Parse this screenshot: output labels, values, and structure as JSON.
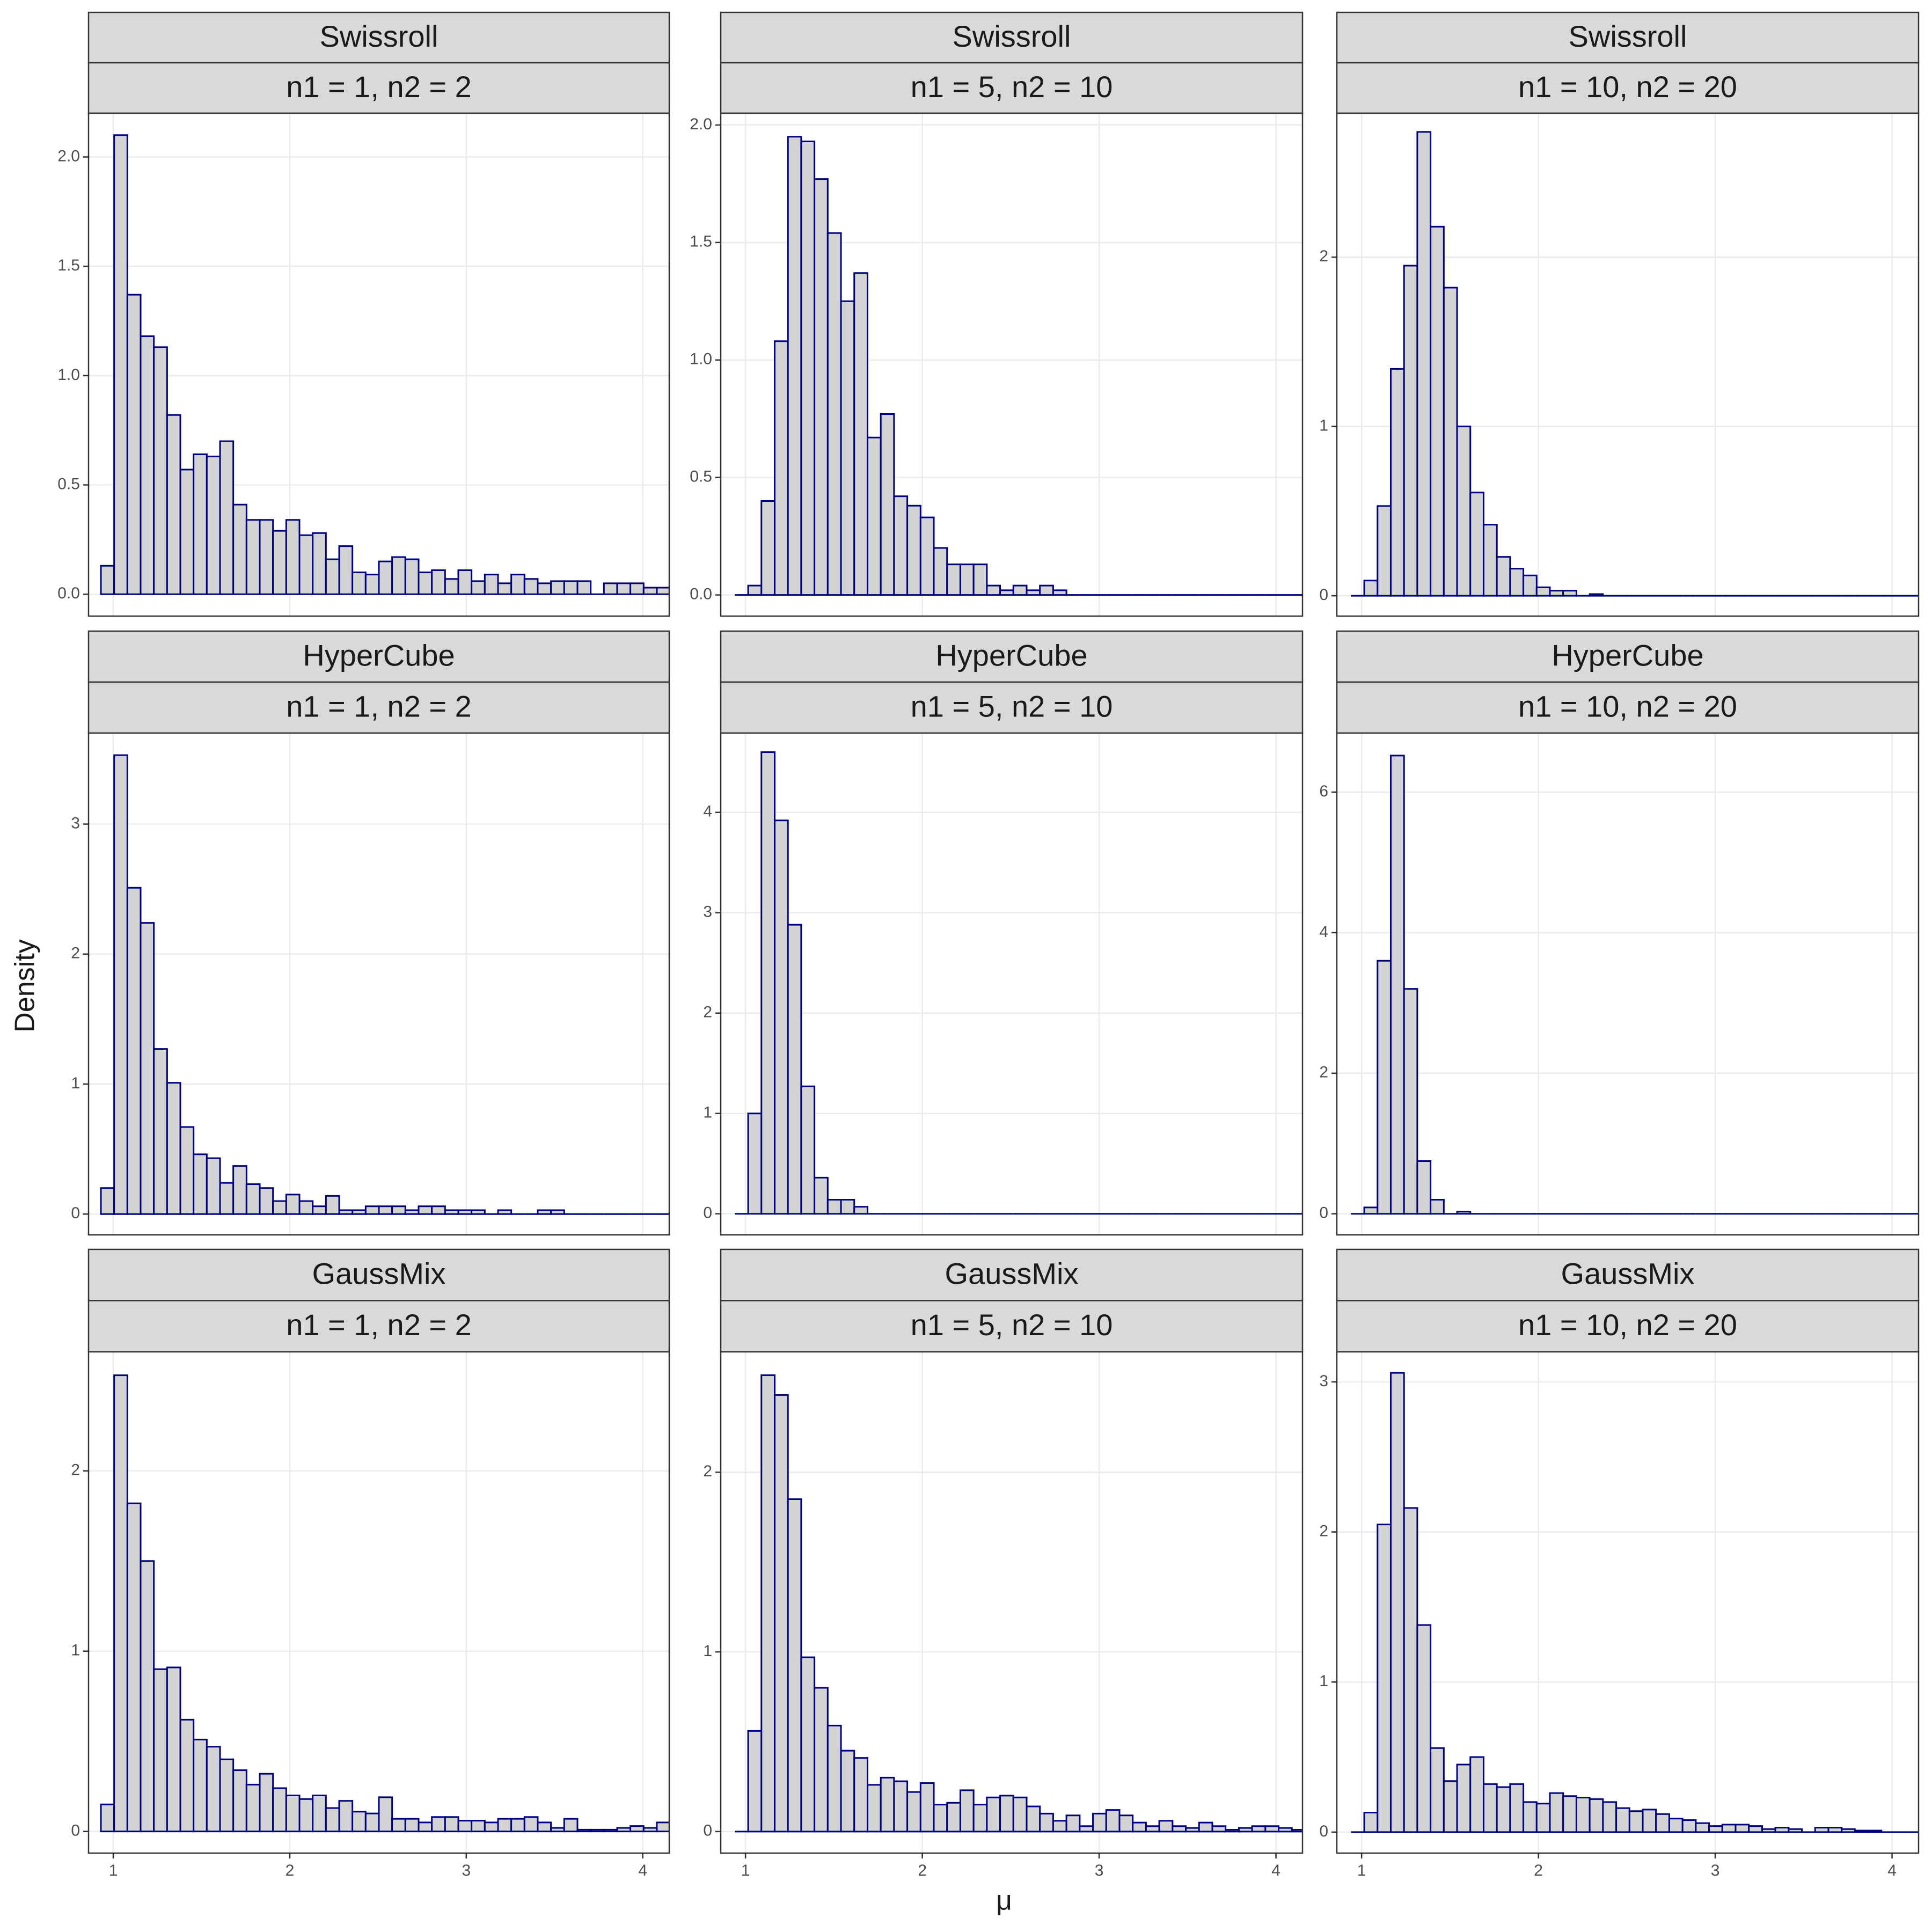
{
  "chart_data": [
    {
      "type": "histogram",
      "title": "Swissroll",
      "subtitle": "n1 = 1, n2 = 2",
      "color": "#000080",
      "fill": "#d3d3d3",
      "bins": [
        0.93,
        1.005,
        1.08,
        1.155,
        1.23,
        1.305,
        1.38,
        1.455,
        1.53,
        1.605,
        1.68,
        1.755,
        1.83,
        1.905,
        1.98,
        2.055,
        2.13,
        2.205,
        2.28,
        2.355,
        2.43,
        2.505,
        2.58,
        2.655,
        2.73,
        2.805,
        2.88,
        2.955,
        3.03,
        3.105,
        3.18,
        3.255,
        3.33,
        3.405,
        3.48,
        3.555,
        3.63,
        3.705,
        3.78,
        3.855,
        3.93,
        4.005,
        4.08,
        4.155
      ],
      "values": [
        0.13,
        2.1,
        1.37,
        1.18,
        1.13,
        0.82,
        0.57,
        0.64,
        0.63,
        0.7,
        0.41,
        0.34,
        0.34,
        0.29,
        0.34,
        0.27,
        0.28,
        0.16,
        0.22,
        0.1,
        0.09,
        0.15,
        0.17,
        0.16,
        0.1,
        0.11,
        0.07,
        0.11,
        0.06,
        0.09,
        0.05,
        0.09,
        0.07,
        0.05,
        0.06,
        0.06,
        0.06,
        0,
        0.05,
        0.05,
        0.05,
        0.03,
        0.03
      ],
      "xlim": [
        0.86,
        4.15
      ],
      "xticks": [
        1,
        2,
        3,
        4
      ],
      "ylim": [
        -0.1,
        2.2
      ],
      "yticks": [
        {
          "value": 0,
          "label": "0.0"
        },
        0.5,
        {
          "value": 1,
          "label": "1.0"
        },
        1.5,
        {
          "value": 2,
          "label": "2.0"
        }
      ]
    },
    {
      "type": "histogram",
      "title": "Swissroll",
      "subtitle": "n1 = 5, n2 = 10",
      "color": "#000080",
      "fill": "#d3d3d3",
      "bins": [
        0.94,
        1.015,
        1.09,
        1.165,
        1.24,
        1.315,
        1.39,
        1.465,
        1.54,
        1.615,
        1.69,
        1.765,
        1.84,
        1.915,
        1.99,
        2.065,
        2.14,
        2.215,
        2.29,
        2.365,
        2.44,
        2.515,
        2.59,
        2.665,
        2.74,
        2.815,
        2.89,
        2.965,
        3.04,
        3.115,
        3.19,
        3.265,
        3.34,
        3.415,
        3.49,
        3.565,
        3.64,
        3.715,
        3.79,
        3.865,
        3.94,
        4.015,
        4.09,
        4.165
      ],
      "values": [
        0,
        0.04,
        0.4,
        1.08,
        1.95,
        1.93,
        1.77,
        1.54,
        1.25,
        1.37,
        0.67,
        0.77,
        0.42,
        0.38,
        0.33,
        0.2,
        0.13,
        0.13,
        0.13,
        0.04,
        0.02,
        0.04,
        0.02,
        0.04,
        0.02,
        0,
        0,
        0,
        0,
        0,
        0,
        0,
        0,
        0,
        0,
        0,
        0,
        0,
        0,
        0,
        0,
        0,
        0
      ],
      "xlim": [
        0.86,
        4.15
      ],
      "xticks": [
        1,
        2,
        3,
        4
      ],
      "ylim": [
        -0.09,
        2.05
      ],
      "yticks": [
        {
          "value": 0,
          "label": "0.0"
        },
        0.5,
        {
          "value": 1,
          "label": "1.0"
        },
        1.5,
        {
          "value": 2,
          "label": "2.0"
        }
      ]
    },
    {
      "type": "histogram",
      "title": "Swissroll",
      "subtitle": "n1 = 10, n2 = 20",
      "color": "#000080",
      "fill": "#d3d3d3",
      "bins": [
        0.94,
        1.015,
        1.09,
        1.165,
        1.24,
        1.315,
        1.39,
        1.465,
        1.54,
        1.615,
        1.69,
        1.765,
        1.84,
        1.915,
        1.99,
        2.065,
        2.14,
        2.215,
        2.29,
        2.365,
        2.44,
        2.515,
        2.59,
        2.665,
        2.74,
        2.815,
        2.89,
        2.965,
        3.04,
        3.115,
        3.19,
        3.265,
        3.34,
        3.415,
        3.49,
        3.565,
        3.64,
        3.715,
        3.79,
        3.865,
        3.94,
        4.015,
        4.09,
        4.165
      ],
      "values": [
        0,
        0.09,
        0.53,
        1.34,
        1.95,
        2.74,
        2.18,
        1.82,
        1.0,
        0.61,
        0.42,
        0.23,
        0.16,
        0.12,
        0.05,
        0.03,
        0.03,
        0,
        0.01,
        0,
        0,
        0,
        0,
        0,
        0,
        0,
        0,
        0,
        0,
        0,
        0,
        0,
        0,
        0,
        0,
        0,
        0,
        0,
        0,
        0,
        0,
        0,
        0
      ],
      "xlim": [
        0.86,
        4.15
      ],
      "xticks": [
        1,
        2,
        3,
        4
      ],
      "ylim": [
        -0.12,
        2.85
      ],
      "yticks": [
        0,
        1,
        2
      ]
    },
    {
      "type": "histogram",
      "title": "HyperCube",
      "subtitle": "n1 = 1, n2 = 2",
      "color": "#000080",
      "fill": "#d3d3d3",
      "ylabel": "Density",
      "bins": [
        0.93,
        1.005,
        1.08,
        1.155,
        1.23,
        1.305,
        1.38,
        1.455,
        1.53,
        1.605,
        1.68,
        1.755,
        1.83,
        1.905,
        1.98,
        2.055,
        2.13,
        2.205,
        2.28,
        2.355,
        2.43,
        2.505,
        2.58,
        2.655,
        2.73,
        2.805,
        2.88,
        2.955,
        3.03,
        3.105,
        3.18,
        3.255,
        3.33,
        3.405,
        3.48,
        3.555,
        3.63,
        3.705,
        3.78,
        3.855,
        3.93,
        4.005,
        4.08,
        4.155
      ],
      "values": [
        0.2,
        3.53,
        2.51,
        2.24,
        1.27,
        1.01,
        0.67,
        0.46,
        0.43,
        0.24,
        0.37,
        0.23,
        0.2,
        0.1,
        0.15,
        0.1,
        0.06,
        0.14,
        0.03,
        0.03,
        0.06,
        0.06,
        0.06,
        0.03,
        0.06,
        0.06,
        0.03,
        0.03,
        0.03,
        0,
        0.03,
        0,
        0,
        0.03,
        0.03,
        0,
        0,
        0,
        0,
        0,
        0,
        0,
        0
      ],
      "xlim": [
        0.86,
        4.15
      ],
      "xticks": [
        1,
        2,
        3,
        4
      ],
      "ylim": [
        -0.16,
        3.7
      ],
      "yticks": [
        0,
        1,
        2,
        3
      ]
    },
    {
      "type": "histogram",
      "title": "HyperCube",
      "subtitle": "n1 = 5, n2 = 10",
      "color": "#000080",
      "fill": "#d3d3d3",
      "bins": [
        0.94,
        1.015,
        1.09,
        1.165,
        1.24,
        1.315,
        1.39,
        1.465,
        1.54,
        1.615,
        1.69,
        1.765,
        1.84,
        1.915,
        1.99,
        2.065,
        2.14,
        2.215,
        2.29,
        2.365,
        2.44,
        2.515,
        2.59,
        2.665,
        2.74,
        2.815,
        2.89,
        2.965,
        3.04,
        3.115,
        3.19,
        3.265,
        3.34,
        3.415,
        3.49,
        3.565,
        3.64,
        3.715,
        3.79,
        3.865,
        3.94,
        4.015,
        4.09,
        4.165
      ],
      "values": [
        0,
        1.0,
        4.6,
        3.92,
        2.88,
        1.27,
        0.36,
        0.14,
        0.14,
        0.07,
        0,
        0,
        0,
        0,
        0,
        0,
        0,
        0,
        0,
        0,
        0,
        0,
        0,
        0,
        0,
        0,
        0,
        0,
        0,
        0,
        0,
        0,
        0,
        0,
        0,
        0,
        0,
        0,
        0,
        0,
        0,
        0,
        0
      ],
      "xlim": [
        0.86,
        4.15
      ],
      "xticks": [
        1,
        2,
        3,
        4
      ],
      "ylim": [
        -0.21,
        4.79
      ],
      "yticks": [
        0,
        1,
        2,
        3,
        4
      ]
    },
    {
      "type": "histogram",
      "title": "HyperCube",
      "subtitle": "n1 = 10, n2 = 20",
      "color": "#000080",
      "fill": "#d3d3d3",
      "bins": [
        0.94,
        1.015,
        1.09,
        1.165,
        1.24,
        1.315,
        1.39,
        1.465,
        1.54,
        1.615,
        1.69,
        1.765,
        1.84,
        1.915,
        1.99,
        2.065,
        2.14,
        2.215,
        2.29,
        2.365,
        2.44,
        2.515,
        2.59,
        2.665,
        2.74,
        2.815,
        2.89,
        2.965,
        3.04,
        3.115,
        3.19,
        3.265,
        3.34,
        3.415,
        3.49,
        3.565,
        3.64,
        3.715,
        3.79,
        3.865,
        3.94,
        4.015,
        4.09,
        4.165
      ],
      "values": [
        0,
        0.09,
        3.6,
        6.52,
        3.2,
        0.75,
        0.2,
        0,
        0.03,
        0,
        0,
        0,
        0,
        0,
        0,
        0,
        0,
        0,
        0,
        0,
        0,
        0,
        0,
        0,
        0,
        0,
        0,
        0,
        0,
        0,
        0,
        0,
        0,
        0,
        0,
        0,
        0,
        0,
        0,
        0,
        0,
        0,
        0
      ],
      "xlim": [
        0.86,
        4.15
      ],
      "xticks": [
        1,
        2,
        3,
        4
      ],
      "ylim": [
        -0.3,
        6.84
      ],
      "yticks": [
        0,
        2,
        4,
        6
      ]
    },
    {
      "type": "histogram",
      "title": "GaussMix",
      "subtitle": "n1 = 1, n2 = 2",
      "color": "#000080",
      "fill": "#d3d3d3",
      "bins": [
        0.93,
        1.005,
        1.08,
        1.155,
        1.23,
        1.305,
        1.38,
        1.455,
        1.53,
        1.605,
        1.68,
        1.755,
        1.83,
        1.905,
        1.98,
        2.055,
        2.13,
        2.205,
        2.28,
        2.355,
        2.43,
        2.505,
        2.58,
        2.655,
        2.73,
        2.805,
        2.88,
        2.955,
        3.03,
        3.105,
        3.18,
        3.255,
        3.33,
        3.405,
        3.48,
        3.555,
        3.63,
        3.705,
        3.78,
        3.855,
        3.93,
        4.005,
        4.08,
        4.155
      ],
      "values": [
        0.15,
        2.53,
        1.82,
        1.5,
        0.9,
        0.91,
        0.62,
        0.51,
        0.47,
        0.4,
        0.34,
        0.26,
        0.32,
        0.24,
        0.2,
        0.18,
        0.2,
        0.13,
        0.17,
        0.11,
        0.1,
        0.19,
        0.07,
        0.07,
        0.05,
        0.08,
        0.08,
        0.06,
        0.06,
        0.05,
        0.07,
        0.07,
        0.08,
        0.05,
        0.02,
        0.07,
        0.01,
        0.01,
        0.01,
        0.02,
        0.03,
        0.02,
        0.05
      ],
      "xlim": [
        0.86,
        4.15
      ],
      "xticks": [
        1,
        2,
        3,
        4
      ],
      "ylim": [
        -0.12,
        2.66
      ],
      "yticks": [
        0,
        1,
        2
      ]
    },
    {
      "type": "histogram",
      "title": "GaussMix",
      "subtitle": "n1 = 5, n2 = 10",
      "color": "#000080",
      "fill": "#d3d3d3",
      "xlabel": "μ",
      "bins": [
        0.94,
        1.015,
        1.09,
        1.165,
        1.24,
        1.315,
        1.39,
        1.465,
        1.54,
        1.615,
        1.69,
        1.765,
        1.84,
        1.915,
        1.99,
        2.065,
        2.14,
        2.215,
        2.29,
        2.365,
        2.44,
        2.515,
        2.59,
        2.665,
        2.74,
        2.815,
        2.89,
        2.965,
        3.04,
        3.115,
        3.19,
        3.265,
        3.34,
        3.415,
        3.49,
        3.565,
        3.64,
        3.715,
        3.79,
        3.865,
        3.94,
        4.015,
        4.09,
        4.165
      ],
      "values": [
        0,
        0.56,
        2.54,
        2.43,
        1.85,
        0.97,
        0.8,
        0.59,
        0.45,
        0.41,
        0.26,
        0.3,
        0.28,
        0.22,
        0.27,
        0.15,
        0.16,
        0.23,
        0.15,
        0.19,
        0.2,
        0.19,
        0.14,
        0.1,
        0.06,
        0.09,
        0.03,
        0.1,
        0.12,
        0.09,
        0.05,
        0.03,
        0.06,
        0.03,
        0.02,
        0.05,
        0.03,
        0.01,
        0.02,
        0.03,
        0.03,
        0.02,
        0.01
      ],
      "xlim": [
        0.86,
        4.15
      ],
      "xticks": [
        1,
        2,
        3,
        4
      ],
      "ylim": [
        -0.12,
        2.67
      ],
      "yticks": [
        0,
        1,
        2
      ]
    },
    {
      "type": "histogram",
      "title": "GaussMix",
      "subtitle": "n1 = 10, n2 = 20",
      "color": "#000080",
      "fill": "#d3d3d3",
      "bins": [
        0.94,
        1.015,
        1.09,
        1.165,
        1.24,
        1.315,
        1.39,
        1.465,
        1.54,
        1.615,
        1.69,
        1.765,
        1.84,
        1.915,
        1.99,
        2.065,
        2.14,
        2.215,
        2.29,
        2.365,
        2.44,
        2.515,
        2.59,
        2.665,
        2.74,
        2.815,
        2.89,
        2.965,
        3.04,
        3.115,
        3.19,
        3.265,
        3.34,
        3.415,
        3.49,
        3.565,
        3.64,
        3.715,
        3.79,
        3.865,
        3.94,
        4.015,
        4.09,
        4.165
      ],
      "values": [
        0,
        0.13,
        2.05,
        3.06,
        2.16,
        1.38,
        0.56,
        0.34,
        0.45,
        0.5,
        0.32,
        0.3,
        0.32,
        0.2,
        0.19,
        0.26,
        0.24,
        0.23,
        0.22,
        0.2,
        0.16,
        0.14,
        0.15,
        0.12,
        0.09,
        0.08,
        0.06,
        0.04,
        0.05,
        0.05,
        0.04,
        0.02,
        0.03,
        0.02,
        0,
        0.03,
        0.03,
        0.02,
        0.01,
        0.01,
        0,
        0,
        0
      ],
      "xlim": [
        0.86,
        4.15
      ],
      "xticks": [
        1,
        2,
        3,
        4
      ],
      "ylim": [
        -0.14,
        3.2
      ],
      "yticks": [
        0,
        1,
        2,
        3
      ]
    }
  ]
}
